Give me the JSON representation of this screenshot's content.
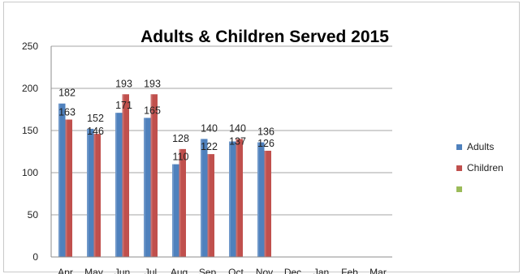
{
  "chart_data": {
    "type": "bar",
    "title": "Adults & Children Served 2015",
    "categories": [
      "Apr",
      "May",
      "Jun",
      "Jul",
      "Aug",
      "Sep",
      "Oct",
      "Nov",
      "Dec",
      "Jan",
      "Feb",
      "Mar"
    ],
    "series": [
      {
        "name": "Adults",
        "color": "#4f81bd",
        "values": [
          182,
          152,
          171,
          165,
          110,
          140,
          137,
          136,
          null,
          null,
          null,
          null
        ]
      },
      {
        "name": "Children",
        "color": "#c0504d",
        "values": [
          163,
          146,
          193,
          193,
          128,
          122,
          140,
          126,
          null,
          null,
          null,
          null
        ]
      },
      {
        "name": "",
        "color": "#9bbb59",
        "values": [
          null,
          null,
          null,
          null,
          null,
          null,
          null,
          null,
          null,
          null,
          null,
          null
        ]
      }
    ],
    "data_labels": [
      {
        "category": "Apr",
        "upper": "182",
        "lower": "163"
      },
      {
        "category": "May",
        "upper": "152",
        "lower": "146"
      },
      {
        "category": "Jun",
        "upper": "193",
        "lower": "171"
      },
      {
        "category": "Jul",
        "upper": "193",
        "lower": "165"
      },
      {
        "category": "Aug",
        "upper": "128",
        "lower": "110"
      },
      {
        "category": "Sep",
        "upper": "140",
        "lower": "122"
      },
      {
        "category": "Oct",
        "upper": "140",
        "lower": "137"
      },
      {
        "category": "Nov",
        "upper": "136",
        "lower": "126"
      }
    ],
    "ylim": [
      0,
      250
    ],
    "yticks": [
      0,
      50,
      100,
      150,
      200,
      250
    ],
    "grid": true,
    "legend_position": "right"
  }
}
